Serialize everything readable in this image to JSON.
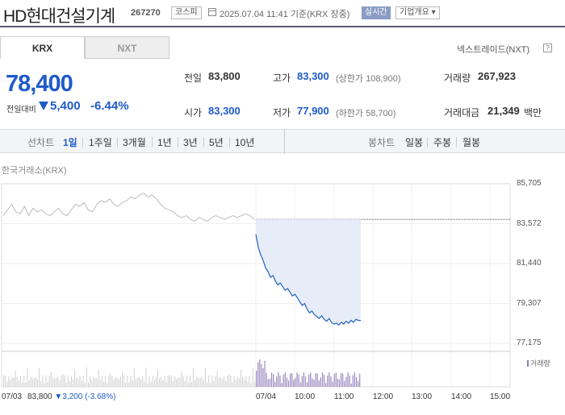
{
  "header": {
    "name": "HD현대건설기계",
    "code": "267270",
    "market_badge": "코스피",
    "timestamp": "2025.07.04 11:41 기준(KRX 장중)",
    "realtime_badge": "실시간",
    "company_overview": "기업개요 ▾"
  },
  "tabs": {
    "krx": "KRX",
    "nxt": "NXT"
  },
  "nxt_trade": "넥스트레이드(NXT)",
  "price": {
    "current": "78,400",
    "change_label": "전일대비",
    "change": "5,400",
    "change_pct": "-6.44%"
  },
  "stats": {
    "prev_label": "전일",
    "prev": "83,800",
    "high_label": "고가",
    "high": "83,300",
    "upper_limit": "(상한가 108,900)",
    "volume_label": "거래량",
    "volume": "267,923",
    "open_label": "시가",
    "open": "83,300",
    "low_label": "저가",
    "low": "77,900",
    "lower_limit": "(하한가 58,700)",
    "value_label": "거래대금",
    "value": "21,349",
    "value_unit": "백만"
  },
  "period_bar": {
    "line_label": "선차트",
    "line_items": [
      "1일",
      "1주일",
      "3개월",
      "1년",
      "3년",
      "5년",
      "10년"
    ],
    "active": "1일",
    "candle_label": "봉차트",
    "candle_items": [
      "일봉",
      "주봉",
      "월봉"
    ]
  },
  "exchange_label": "한국거래소(KRX)",
  "chart_data": {
    "type": "line",
    "y_ticks": [
      "85,705",
      "83,572",
      "81,440",
      "79,307",
      "77,175"
    ],
    "ylim": [
      77175,
      85705
    ],
    "prev_close": 83800,
    "x_ticks": [
      "07/03",
      "07/04",
      "10:00",
      "11:00",
      "12:00",
      "13:00",
      "14:00",
      "15:00"
    ],
    "volume_legend": "거래량",
    "prev_day_info": {
      "date": "07/03",
      "close": "83,800",
      "change": "▼3,200",
      "pct": "(-3.68%)"
    },
    "today_series": [
      83000,
      82300,
      81900,
      81600,
      81200,
      81000,
      80700,
      80800,
      80500,
      80300,
      80400,
      80200,
      80000,
      80100,
      79900,
      79700,
      79800,
      79600,
      79400,
      79200,
      79300,
      79000,
      78800,
      78900,
      78700,
      78600,
      78500,
      78650,
      78450,
      78350,
      78500,
      78300,
      78200,
      78250,
      78150,
      78300,
      78200,
      78350,
      78250,
      78400,
      78300,
      78450,
      78400,
      78400
    ],
    "prev_day_series": [
      84000,
      84300,
      84600,
      84200,
      84100,
      84500,
      84000,
      84400,
      84200,
      84300,
      84100,
      84000,
      84200,
      84400,
      84100,
      84000,
      84300,
      84600,
      84500,
      84700,
      84300,
      84200,
      84600,
      84800,
      84700,
      84900,
      84600,
      84500,
      84700,
      84800,
      85000,
      84900,
      85100,
      85200,
      85000,
      85100,
      84900,
      84600,
      84400,
      84300,
      84200,
      84000,
      83900,
      84000,
      83800,
      83700,
      83900,
      83800,
      83700,
      83900,
      84000,
      83900,
      83800,
      83900,
      84000,
      83900,
      84000,
      84100,
      84000,
      83800
    ]
  }
}
